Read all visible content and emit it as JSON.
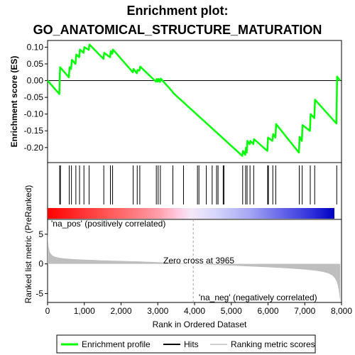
{
  "title_lines": [
    "Enrichment plot:",
    "GO_ANATOMICAL_STRUCTURE_MATURATION"
  ],
  "colors": {
    "enrichment": "#00ff00",
    "hits": "#000000",
    "metric_fill": "#bebebe",
    "pos_text": "#ff0000",
    "neg_text": "#0000ff",
    "frame": "#000000",
    "zero_cross_line": "#a0a0a0"
  },
  "chart_data": [
    {
      "name": "enrichment-profile-panel",
      "type": "line",
      "ylabel": "Enrichment score (ES)",
      "ylim": [
        -0.245,
        0.12
      ],
      "xlim": [
        0,
        8000
      ],
      "yticks": [
        0.1,
        0.05,
        0.0,
        -0.05,
        -0.1,
        -0.15,
        -0.2
      ],
      "ytick_labels": [
        "0.10",
        "0.05",
        "0.00",
        "-0.05",
        "-0.10",
        "-0.15",
        "-0.20"
      ],
      "zero_line": true,
      "series": [
        {
          "x": [
            0,
            320,
            340,
            580,
            600,
            640,
            660,
            760,
            780,
            860,
            880,
            980,
            1000,
            1120,
            1140,
            1520,
            1540,
            1700,
            1720,
            1760,
            1780,
            2320,
            2340,
            2430,
            2450,
            2500,
            2520,
            2950,
            2970,
            3000,
            3020,
            3060,
            3080,
            3400,
            3420,
            5300,
            5320,
            5380,
            5400,
            5420,
            5440,
            5500,
            5520,
            5600,
            5620,
            5980,
            6000,
            6120,
            6140,
            6200,
            6220,
            6840,
            6860,
            6920,
            6940,
            7140,
            7160,
            7260,
            7280,
            7860,
            7880,
            7960
          ],
          "y": [
            0.0,
            -0.04,
            0.04,
            0.01,
            0.04,
            0.035,
            0.062,
            0.05,
            0.078,
            0.07,
            0.093,
            0.083,
            0.1,
            0.092,
            0.108,
            0.065,
            0.083,
            0.07,
            0.088,
            0.08,
            0.093,
            0.025,
            0.035,
            0.022,
            0.032,
            0.03,
            0.042,
            -0.003,
            0.005,
            -0.003,
            0.005,
            -0.004,
            0.006,
            -0.033,
            -0.037,
            -0.225,
            -0.21,
            -0.222,
            -0.2,
            -0.215,
            -0.18,
            -0.19,
            -0.18,
            -0.19,
            -0.175,
            -0.21,
            -0.17,
            -0.18,
            -0.16,
            -0.17,
            -0.13,
            -0.215,
            -0.168,
            -0.18,
            -0.133,
            -0.15,
            -0.1,
            -0.112,
            -0.057,
            -0.128,
            0.012,
            0.0
          ]
        }
      ]
    },
    {
      "name": "hits-panel",
      "type": "scatter",
      "xlim": [
        0,
        8000
      ],
      "hit_positions": [
        330,
        350,
        590,
        650,
        770,
        870,
        990,
        1130,
        1530,
        1710,
        1770,
        2330,
        2440,
        2510,
        2960,
        3010,
        3070,
        3410,
        3700,
        4080,
        4120,
        4320,
        4480,
        4600,
        4640,
        4780,
        4800,
        5310,
        5390,
        5430,
        5510,
        5610,
        5990,
        6010,
        6130,
        6210,
        6850,
        6930,
        7150,
        7270,
        7870
      ]
    },
    {
      "name": "ranked-list-panel",
      "type": "area",
      "ylabel": "Ranked list metric (PreRanked)",
      "xlabel": "Rank in Ordered Dataset",
      "ylim": [
        -6.5,
        7.5
      ],
      "xlim": [
        0,
        8000
      ],
      "yticks": [
        5,
        0,
        -5
      ],
      "ytick_labels": [
        "5",
        "0",
        "-5"
      ],
      "xticks": [
        0,
        1000,
        2000,
        3000,
        4000,
        5000,
        6000,
        7000,
        8000
      ],
      "xtick_labels": [
        "0",
        "1,000",
        "2,000",
        "3,000",
        "4,000",
        "5,000",
        "6,000",
        "7,000",
        "8,000"
      ],
      "x": [
        0,
        10,
        30,
        60,
        100,
        150,
        200,
        300,
        400,
        600,
        800,
        1000,
        1500,
        2000,
        2500,
        3000,
        3500,
        3965,
        4500,
        5000,
        5500,
        6000,
        6500,
        7000,
        7300,
        7500,
        7650,
        7750,
        7820,
        7870,
        7900,
        7930,
        7950,
        7965
      ],
      "y": [
        6.0,
        4.2,
        2.8,
        2.0,
        1.6,
        1.35,
        1.2,
        1.05,
        0.95,
        0.85,
        0.78,
        0.72,
        0.6,
        0.5,
        0.4,
        0.28,
        0.15,
        0.0,
        -0.15,
        -0.28,
        -0.42,
        -0.56,
        -0.72,
        -0.95,
        -1.15,
        -1.35,
        -1.6,
        -1.95,
        -2.4,
        -3.0,
        -3.6,
        -4.6,
        -5.6,
        -6.3
      ],
      "zero_cross_label": "Zero cross at 3965",
      "zero_cross_x": 3965,
      "pos_label": "'na_pos' (positively correlated)",
      "neg_label": "'na_neg' (negatively correlated)"
    }
  ],
  "legend": {
    "items": [
      {
        "label": "Enrichment profile",
        "kind": "line",
        "color": "#00ff00"
      },
      {
        "label": "Hits",
        "kind": "line",
        "color": "#000000"
      },
      {
        "label": "Ranking metric scores",
        "kind": "line",
        "color": "#d0d0d0"
      }
    ]
  }
}
